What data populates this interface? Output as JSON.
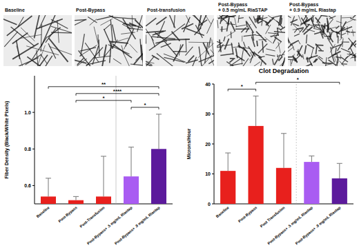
{
  "images": {
    "labels": [
      [
        "Baseline"
      ],
      [
        "Post-Bypass"
      ],
      [
        "Post-transfusion"
      ],
      [
        "Post-Bypass",
        "+ 0.5 mg/mL RiaSTAP"
      ],
      [
        "Post-Bypass",
        "+ 0.9 mg/mL Riastap"
      ]
    ]
  },
  "chart_data": [
    {
      "type": "bar",
      "y_label": "Fiber Density (Black/White Pixels)",
      "categories": [
        "Baseline",
        "Post-Bypass",
        "Post-Transfusion",
        "Post-Bypass+ .5 mg/mL Riastap",
        "Post-Bypass+ .9 mg/mL Riastap"
      ],
      "values": [
        0.54,
        0.52,
        0.54,
        0.65,
        0.8
      ],
      "errors": [
        0.1,
        0.02,
        0.22,
        0.16,
        0.19
      ],
      "colors": [
        "#e8201d",
        "#e8201d",
        "#e8201d",
        "#a95cf2",
        "#5c1a9c"
      ],
      "ylim": [
        0.5,
        1.2
      ],
      "yticks": [
        0.6,
        0.8,
        {
          "value": 1,
          "label": "1.0"
        }
      ],
      "significance": [
        {
          "from": "Baseline",
          "to": "Post-Bypass+ .9 mg/mL Riastap",
          "label": "**"
        },
        {
          "from": "Post-Bypass",
          "to": "Post-Bypass+ .9 mg/mL Riastap",
          "label": "****"
        },
        {
          "from": "Post-Bypass",
          "to": "Post-Bypass+ .5 mg/mL Riastap",
          "label": "*"
        },
        {
          "from": "Post-Bypass+ .5 mg/mL Riastap",
          "to": "Post-Bypass+ .9 mg/mL Riastap",
          "label": "*"
        }
      ]
    },
    {
      "type": "bar",
      "title": "Clot Degradation",
      "y_label": "Microns/Hour",
      "categories": [
        "Baseline",
        "Post-Bypass",
        "Post Transfusion",
        "Post-Bypass+ .5 mg/mL Riastap",
        "Post-Bypass+ .9 mg/mL Riastap"
      ],
      "values": [
        11,
        26,
        12,
        14,
        8.5
      ],
      "errors": [
        6,
        10,
        11.5,
        2,
        5
      ],
      "colors": [
        "#e8201d",
        "#e8201d",
        "#e8201d",
        "#a95cf2",
        "#5c1a9c"
      ],
      "ylim": [
        0,
        40
      ],
      "yticks": [
        0,
        10,
        20,
        30,
        40
      ],
      "significance": [
        {
          "from": "Baseline",
          "to": "Post-Bypass",
          "label": "*"
        },
        {
          "from": "Post-Bypass",
          "to": "Post-Bypass+ .9 mg/mL Riastap",
          "label": "*"
        }
      ]
    }
  ]
}
